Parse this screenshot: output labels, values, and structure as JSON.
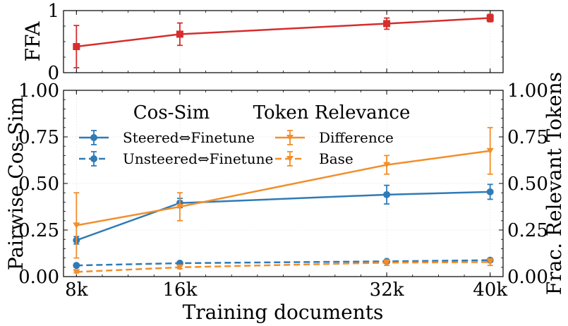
{
  "chart_data": [
    {
      "id": "ffa",
      "type": "line",
      "ylabel": "FFA",
      "ylim": [
        0,
        1
      ],
      "yticks": [
        "0",
        "1"
      ],
      "x": [
        8000,
        16000,
        32000,
        40000
      ],
      "series": [
        {
          "color": "#d62d2d",
          "marker": "square",
          "values": [
            0.42,
            0.62,
            0.79,
            0.88
          ],
          "err": [
            0.34,
            0.18,
            0.09,
            0.06
          ]
        }
      ]
    },
    {
      "id": "main",
      "type": "line",
      "xlabel": "Training documents",
      "ylabel": "Pairwise Cos-Sim",
      "ylabel_right": "Frac. Relevant Tokens",
      "ylim": [
        0,
        1
      ],
      "yticks": [
        "0.00",
        "0.25",
        "0.50",
        "0.75",
        "1.00"
      ],
      "xticks": [
        "8k",
        "16k",
        "32k",
        "40k"
      ],
      "x": [
        8000,
        16000,
        32000,
        40000
      ],
      "legend": {
        "left_title": "Cos-Sim",
        "right_title": "Token Relevance"
      },
      "series": [
        {
          "name": "Steered⇔Finetune",
          "color": "#2f7bb6",
          "marker": "circle",
          "dash": false,
          "values": [
            0.195,
            0.395,
            0.44,
            0.455
          ],
          "err": [
            0.02,
            0.025,
            0.05,
            0.04
          ]
        },
        {
          "name": "Unsteered⇔Finetune",
          "color": "#2f7bb6",
          "marker": "circle",
          "dash": true,
          "values": [
            0.06,
            0.072,
            0.082,
            0.088
          ],
          "err": [
            0.008,
            0.008,
            0.01,
            0.01
          ]
        },
        {
          "name": "Difference",
          "color": "#f28e2b",
          "marker": "triangle",
          "dash": false,
          "values": [
            0.275,
            0.375,
            0.6,
            0.675
          ],
          "err": [
            0.175,
            0.075,
            0.05,
            0.125
          ]
        },
        {
          "name": "Base",
          "color": "#f28e2b",
          "marker": "triangle",
          "dash": true,
          "values": [
            0.025,
            0.05,
            0.075,
            0.078
          ],
          "err": [
            0.005,
            0.008,
            0.015,
            0.018
          ]
        }
      ]
    }
  ]
}
